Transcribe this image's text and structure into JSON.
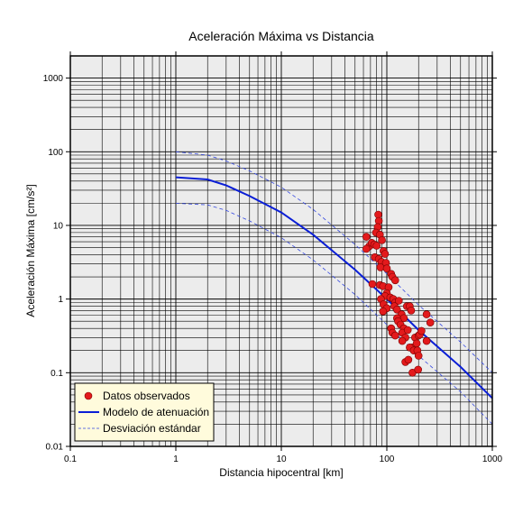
{
  "chart_data": {
    "type": "scatter",
    "title": "Aceleración Máxima vs Distancia",
    "xlabel": "Distancia hipocentral [km]",
    "ylabel": "Aceleración Máxima [cm/s²]",
    "x_scale": "log",
    "y_scale": "log",
    "xlim": [
      0.1,
      1000
    ],
    "ylim": [
      0.01,
      2000
    ],
    "x_ticks": [
      {
        "value": 0.1,
        "label": "0.1"
      },
      {
        "value": 1,
        "label": "1"
      },
      {
        "value": 10,
        "label": "10"
      },
      {
        "value": 100,
        "label": "100"
      },
      {
        "value": 1000,
        "label": "1000"
      }
    ],
    "y_ticks": [
      {
        "value": 0.01,
        "label": "0.01"
      },
      {
        "value": 0.1,
        "label": "0.1"
      },
      {
        "value": 1,
        "label": "1"
      },
      {
        "value": 10,
        "label": "10"
      },
      {
        "value": 100,
        "label": "100"
      },
      {
        "value": 1000,
        "label": "1000"
      }
    ],
    "grid": true,
    "legend_position": "bottom-left",
    "colors": {
      "points": "#e31a1c",
      "model": "#0a1ed6",
      "std": "#3347e0",
      "plot_background": "#ececec",
      "legend_background": "#fffbdc"
    },
    "series": [
      {
        "name": "Datos observados",
        "kind": "scatter",
        "points": [
          {
            "x": 83,
            "y": 14
          },
          {
            "x": 84,
            "y": 11.5
          },
          {
            "x": 82,
            "y": 9.5
          },
          {
            "x": 79,
            "y": 8
          },
          {
            "x": 86,
            "y": 7.5
          },
          {
            "x": 90,
            "y": 6.3
          },
          {
            "x": 64,
            "y": 7
          },
          {
            "x": 68,
            "y": 5.2
          },
          {
            "x": 72,
            "y": 5.8
          },
          {
            "x": 76,
            "y": 5.5
          },
          {
            "x": 80,
            "y": 5.3
          },
          {
            "x": 64,
            "y": 4.8
          },
          {
            "x": 93,
            "y": 4.5
          },
          {
            "x": 96,
            "y": 4.1
          },
          {
            "x": 77,
            "y": 3.7
          },
          {
            "x": 84,
            "y": 3.5
          },
          {
            "x": 89,
            "y": 3.2
          },
          {
            "x": 98,
            "y": 3.1
          },
          {
            "x": 87,
            "y": 2.7
          },
          {
            "x": 100,
            "y": 2.6
          },
          {
            "x": 110,
            "y": 2.2
          },
          {
            "x": 113,
            "y": 2.0
          },
          {
            "x": 120,
            "y": 1.8
          },
          {
            "x": 86,
            "y": 1.55
          },
          {
            "x": 92,
            "y": 1.5
          },
          {
            "x": 104,
            "y": 1.45
          },
          {
            "x": 73,
            "y": 1.6
          },
          {
            "x": 100,
            "y": 1.2
          },
          {
            "x": 96,
            "y": 1.1
          },
          {
            "x": 108,
            "y": 1.05
          },
          {
            "x": 88,
            "y": 1.0
          },
          {
            "x": 115,
            "y": 1.0
          },
          {
            "x": 120,
            "y": 0.9
          },
          {
            "x": 130,
            "y": 0.95
          },
          {
            "x": 93,
            "y": 0.85
          },
          {
            "x": 100,
            "y": 0.75
          },
          {
            "x": 118,
            "y": 0.8
          },
          {
            "x": 125,
            "y": 0.72
          },
          {
            "x": 92,
            "y": 0.68
          },
          {
            "x": 138,
            "y": 0.62
          },
          {
            "x": 155,
            "y": 0.8
          },
          {
            "x": 165,
            "y": 0.8
          },
          {
            "x": 170,
            "y": 0.7
          },
          {
            "x": 145,
            "y": 0.55
          },
          {
            "x": 125,
            "y": 0.55
          },
          {
            "x": 128,
            "y": 0.5
          },
          {
            "x": 135,
            "y": 0.45
          },
          {
            "x": 110,
            "y": 0.4
          },
          {
            "x": 113,
            "y": 0.35
          },
          {
            "x": 120,
            "y": 0.32
          },
          {
            "x": 145,
            "y": 0.4
          },
          {
            "x": 140,
            "y": 0.35
          },
          {
            "x": 158,
            "y": 0.38
          },
          {
            "x": 150,
            "y": 0.3
          },
          {
            "x": 140,
            "y": 0.27
          },
          {
            "x": 175,
            "y": 0.22
          },
          {
            "x": 185,
            "y": 0.3
          },
          {
            "x": 192,
            "y": 0.25
          },
          {
            "x": 200,
            "y": 0.32
          },
          {
            "x": 205,
            "y": 0.33
          },
          {
            "x": 213,
            "y": 0.37
          },
          {
            "x": 165,
            "y": 0.22
          },
          {
            "x": 180,
            "y": 0.2
          },
          {
            "x": 195,
            "y": 0.2
          },
          {
            "x": 200,
            "y": 0.17
          },
          {
            "x": 150,
            "y": 0.14
          },
          {
            "x": 160,
            "y": 0.15
          },
          {
            "x": 175,
            "y": 0.1
          },
          {
            "x": 198,
            "y": 0.11
          },
          {
            "x": 238,
            "y": 0.62
          },
          {
            "x": 258,
            "y": 0.48
          },
          {
            "x": 238,
            "y": 0.27
          }
        ]
      },
      {
        "name": "Modelo de atenuación",
        "kind": "line",
        "points": [
          {
            "x": 1,
            "y": 45
          },
          {
            "x": 2,
            "y": 42
          },
          {
            "x": 3,
            "y": 35
          },
          {
            "x": 5,
            "y": 25
          },
          {
            "x": 10,
            "y": 15
          },
          {
            "x": 20,
            "y": 7.5
          },
          {
            "x": 50,
            "y": 2.5
          },
          {
            "x": 100,
            "y": 1.0
          },
          {
            "x": 200,
            "y": 0.38
          },
          {
            "x": 500,
            "y": 0.12
          },
          {
            "x": 1000,
            "y": 0.045
          }
        ]
      },
      {
        "name": "Desviación estándar",
        "kind": "dashed-line",
        "lines": [
          [
            {
              "x": 1,
              "y": 100
            },
            {
              "x": 2,
              "y": 90
            },
            {
              "x": 3,
              "y": 75
            },
            {
              "x": 5,
              "y": 55
            },
            {
              "x": 10,
              "y": 33
            },
            {
              "x": 20,
              "y": 16.5
            },
            {
              "x": 50,
              "y": 5.5
            },
            {
              "x": 100,
              "y": 2.2
            },
            {
              "x": 200,
              "y": 0.83
            },
            {
              "x": 500,
              "y": 0.26
            },
            {
              "x": 1000,
              "y": 0.1
            }
          ],
          [
            {
              "x": 1,
              "y": 20
            },
            {
              "x": 2,
              "y": 19
            },
            {
              "x": 3,
              "y": 16
            },
            {
              "x": 5,
              "y": 11.5
            },
            {
              "x": 10,
              "y": 6.8
            },
            {
              "x": 20,
              "y": 3.4
            },
            {
              "x": 50,
              "y": 1.15
            },
            {
              "x": 100,
              "y": 0.45
            },
            {
              "x": 200,
              "y": 0.17
            },
            {
              "x": 500,
              "y": 0.055
            },
            {
              "x": 1000,
              "y": 0.02
            }
          ]
        ]
      }
    ]
  }
}
